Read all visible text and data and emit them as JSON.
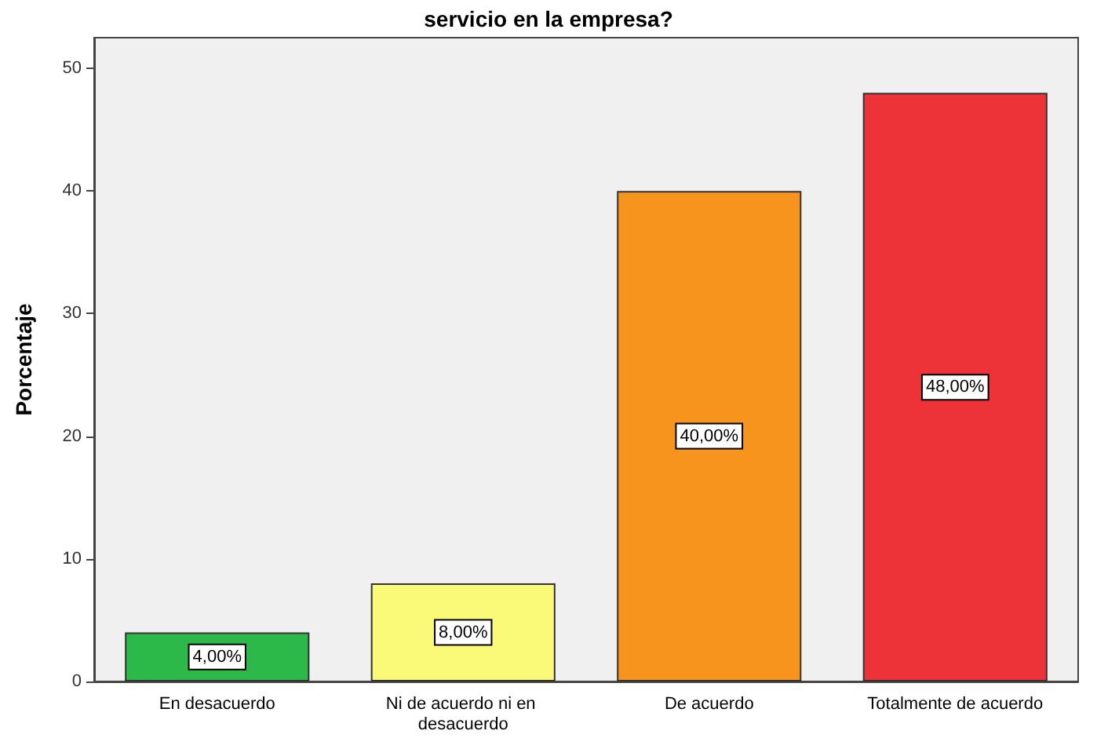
{
  "chart_data": {
    "type": "bar",
    "title": "servicio en la empresa?",
    "ylabel": "Porcentaje",
    "categories": [
      "En desacuerdo",
      "Ni de acuerdo ni en desacuerdo",
      "De acuerdo",
      "Totalmente de acuerdo"
    ],
    "values": [
      4,
      8,
      40,
      48
    ],
    "colors": [
      "#2db84a",
      "#fafa78",
      "#f7941e",
      "#ee3338"
    ],
    "value_labels": [
      "4,00%",
      "8,00%",
      "40,00%",
      "48,00%"
    ],
    "ylim": [
      0,
      52.5
    ],
    "yticks": [
      0,
      10,
      20,
      30,
      40,
      50
    ],
    "grid": false
  }
}
